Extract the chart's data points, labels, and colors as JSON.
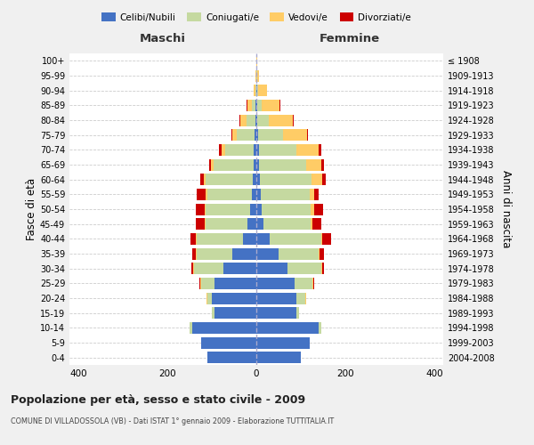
{
  "age_groups": [
    "0-4",
    "5-9",
    "10-14",
    "15-19",
    "20-24",
    "25-29",
    "30-34",
    "35-39",
    "40-44",
    "45-49",
    "50-54",
    "55-59",
    "60-64",
    "65-69",
    "70-74",
    "75-79",
    "80-84",
    "85-89",
    "90-94",
    "95-99",
    "100+"
  ],
  "birth_years": [
    "2004-2008",
    "1999-2003",
    "1994-1998",
    "1989-1993",
    "1984-1988",
    "1979-1983",
    "1974-1978",
    "1969-1973",
    "1964-1968",
    "1959-1963",
    "1954-1958",
    "1949-1953",
    "1944-1948",
    "1939-1943",
    "1934-1938",
    "1929-1933",
    "1924-1928",
    "1919-1923",
    "1914-1918",
    "1909-1913",
    "≤ 1908"
  ],
  "male_celibi": [
    110,
    125,
    145,
    95,
    100,
    95,
    75,
    55,
    30,
    20,
    14,
    11,
    9,
    7,
    6,
    4,
    2,
    2,
    0,
    0,
    0
  ],
  "male_coniugati": [
    0,
    0,
    5,
    5,
    10,
    30,
    65,
    80,
    105,
    95,
    100,
    100,
    105,
    90,
    65,
    40,
    20,
    8,
    2,
    1,
    0
  ],
  "male_vedovi": [
    0,
    0,
    0,
    0,
    2,
    2,
    2,
    2,
    2,
    2,
    2,
    3,
    5,
    5,
    8,
    10,
    15,
    10,
    5,
    2,
    0
  ],
  "male_divorziati": [
    0,
    0,
    0,
    0,
    0,
    2,
    4,
    8,
    12,
    20,
    20,
    20,
    8,
    5,
    5,
    2,
    2,
    2,
    0,
    0,
    0
  ],
  "female_celibi": [
    100,
    120,
    140,
    90,
    90,
    85,
    70,
    50,
    30,
    16,
    12,
    10,
    8,
    6,
    5,
    4,
    2,
    2,
    1,
    0,
    0
  ],
  "female_coniugati": [
    0,
    0,
    5,
    5,
    20,
    40,
    75,
    90,
    115,
    105,
    110,
    110,
    115,
    105,
    85,
    55,
    25,
    10,
    3,
    1,
    0
  ],
  "female_vedovi": [
    0,
    0,
    0,
    0,
    2,
    2,
    2,
    2,
    3,
    5,
    8,
    10,
    25,
    35,
    50,
    55,
    55,
    40,
    20,
    5,
    2
  ],
  "female_divorziati": [
    0,
    0,
    0,
    0,
    0,
    2,
    5,
    10,
    20,
    20,
    20,
    10,
    8,
    5,
    5,
    2,
    2,
    2,
    0,
    0,
    0
  ],
  "colors": {
    "celibi": "#4472C4",
    "coniugati": "#c5d9a0",
    "vedovi": "#FFCC66",
    "divorziati": "#CC0000"
  },
  "xlim": 420,
  "title": "Popolazione per età, sesso e stato civile - 2009",
  "subtitle": "COMUNE DI VILLADOSSOLA (VB) - Dati ISTAT 1° gennaio 2009 - Elaborazione TUTTITALIA.IT",
  "ylabel_left": "Fasce di età",
  "ylabel_right": "Anni di nascita",
  "xlabel_maschi": "Maschi",
  "xlabel_femmine": "Femmine",
  "bg_color": "#f0f0f0",
  "plot_bg_color": "#ffffff"
}
